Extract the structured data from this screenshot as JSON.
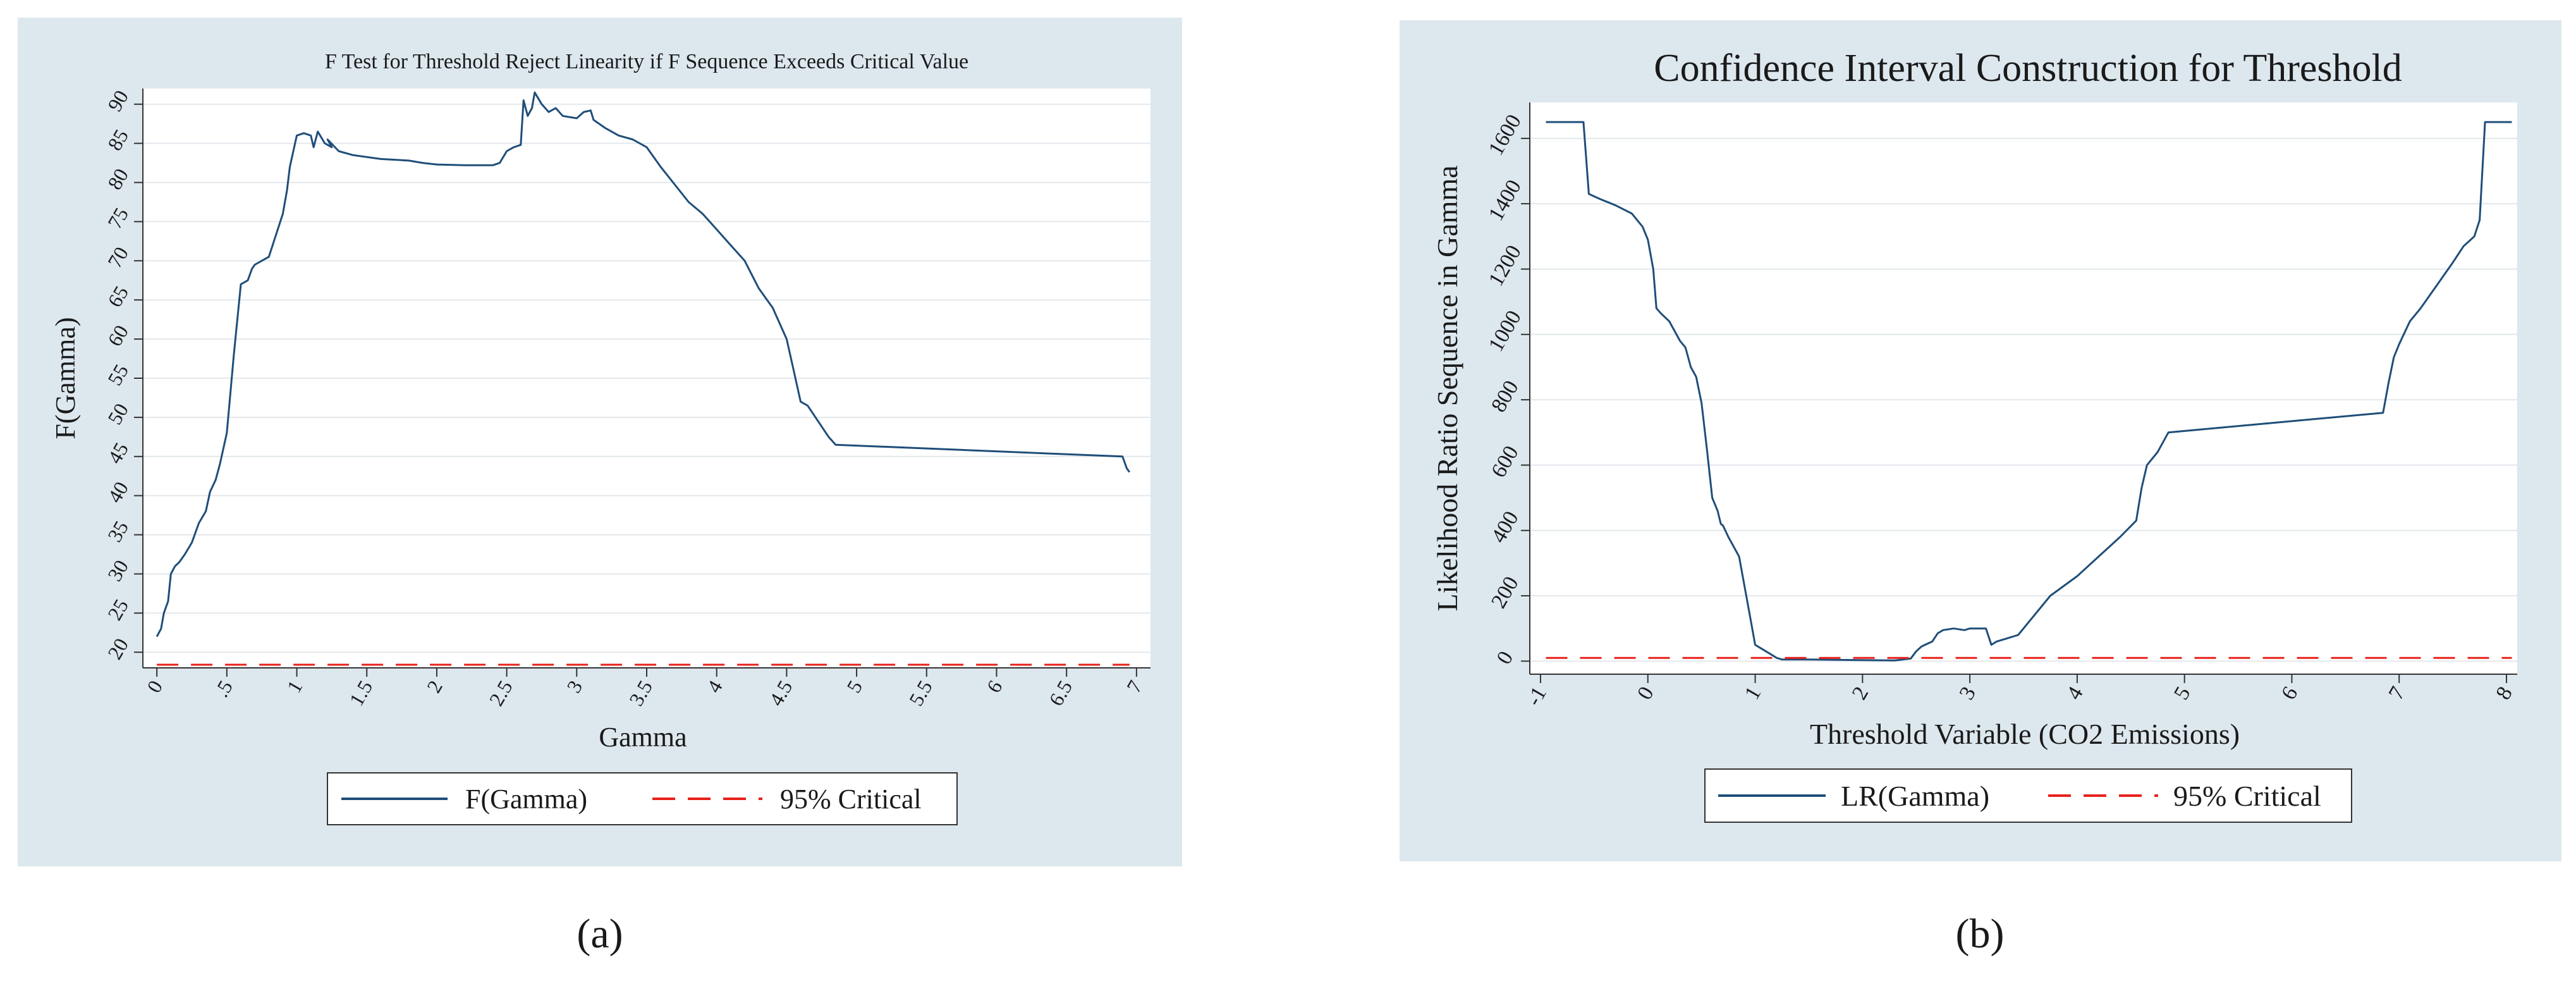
{
  "chart_data": [
    {
      "panel_label": "(a)",
      "type": "line",
      "title": "F Test for Threshold Reject Linearity if F Sequence Exceeds Critical Value",
      "xlabel": "Gamma",
      "ylabel": "F(Gamma)",
      "xlim": [
        -0.1,
        7.1
      ],
      "ylim": [
        18,
        92
      ],
      "xticks": [
        0,
        0.5,
        1,
        1.5,
        2,
        2.5,
        3,
        3.5,
        4,
        4.5,
        5,
        5.5,
        6,
        6.5,
        7
      ],
      "xtick_labels": [
        "0",
        ".5",
        "1",
        "1.5",
        "2",
        "2.5",
        "3",
        "3.5",
        "4",
        "4.5",
        "5",
        "5.5",
        "6",
        "6.5",
        "7"
      ],
      "yticks": [
        20,
        25,
        30,
        35,
        40,
        45,
        50,
        55,
        60,
        65,
        70,
        75,
        80,
        85,
        90
      ],
      "ytick_labels": [
        "20",
        "25",
        "30",
        "35",
        "40",
        "45",
        "50",
        "55",
        "60",
        "65",
        "70",
        "75",
        "80",
        "85",
        "90"
      ],
      "grid": true,
      "legend": [
        "F(Gamma)",
        "95% Critical"
      ],
      "colors": {
        "series": "#1f4e79",
        "critical": "#e8201a",
        "frame": "#dde7ee"
      },
      "series": [
        {
          "name": "F(Gamma)",
          "style": "solid",
          "x": [
            0,
            0.03,
            0.05,
            0.08,
            0.1,
            0.13,
            0.16,
            0.2,
            0.25,
            0.3,
            0.35,
            0.38,
            0.42,
            0.45,
            0.5,
            0.55,
            0.6,
            0.65,
            0.68,
            0.7,
            0.75,
            0.8,
            0.9,
            0.93,
            0.95,
            1.0,
            1.05,
            1.1,
            1.12,
            1.15,
            1.2,
            1.25,
            1.22,
            1.3,
            1.4,
            1.6,
            1.8,
            1.9,
            2.0,
            2.2,
            2.4,
            2.45,
            2.5,
            2.55,
            2.6,
            2.62,
            2.65,
            2.68,
            2.7,
            2.75,
            2.8,
            2.85,
            2.9,
            3.0,
            3.05,
            3.1,
            3.12,
            3.2,
            3.3,
            3.4,
            3.5,
            3.6,
            3.8,
            3.9,
            4.0,
            4.1,
            4.2,
            4.3,
            4.4,
            4.5,
            4.55,
            4.6,
            4.65,
            4.8,
            4.85,
            6.9,
            6.93,
            6.95
          ],
          "y": [
            22,
            23,
            25,
            26.5,
            30,
            31,
            31.5,
            32.5,
            34,
            36.5,
            38,
            40.5,
            42,
            44,
            48,
            58,
            67,
            67.5,
            69,
            69.5,
            70,
            70.5,
            76,
            79,
            82,
            86,
            86.3,
            86,
            84.5,
            86.5,
            85,
            84.5,
            85.5,
            84,
            83.5,
            83,
            82.8,
            82.5,
            82.3,
            82.2,
            82.2,
            82.5,
            84,
            84.5,
            84.8,
            90.5,
            88.5,
            89.5,
            91.5,
            90,
            89,
            89.5,
            88.5,
            88.2,
            89,
            89.2,
            88,
            87,
            86,
            85.5,
            84.5,
            82,
            77.5,
            76,
            74,
            72,
            70,
            66.5,
            64,
            60,
            56,
            52,
            51.5,
            47.5,
            46.5,
            45,
            43.5,
            43
          ]
        },
        {
          "name": "95% Critical",
          "style": "dashed",
          "x": [
            0,
            6.95
          ],
          "y": [
            18.4,
            18.4
          ]
        }
      ]
    },
    {
      "panel_label": "(b)",
      "type": "line",
      "title": "Confidence Interval Construction for Threshold",
      "xlabel": "Threshold Variable (CO2 Emissions)",
      "ylabel": "Likelihood Ratio Sequence in Gamma",
      "xlim": [
        -1.1,
        8.1
      ],
      "ylim": [
        -40,
        1710
      ],
      "xticks": [
        -1,
        0,
        1,
        2,
        3,
        4,
        5,
        6,
        7,
        8
      ],
      "xtick_labels": [
        "-1",
        "0",
        "1",
        "2",
        "3",
        "4",
        "5",
        "6",
        "7",
        "8"
      ],
      "yticks": [
        0,
        200,
        400,
        600,
        800,
        1000,
        1200,
        1400,
        1600
      ],
      "ytick_labels": [
        "0",
        "200",
        "400",
        "600",
        "800",
        "1000",
        "1200",
        "1400",
        "1600"
      ],
      "grid": true,
      "legend": [
        "LR(Gamma)",
        "95% Critical"
      ],
      "colors": {
        "series": "#1f4e79",
        "critical": "#e8201a",
        "frame": "#dde7ee"
      },
      "series": [
        {
          "name": "LR(Gamma)",
          "style": "solid",
          "x": [
            -0.95,
            -0.6,
            -0.55,
            -0.45,
            -0.3,
            -0.15,
            -0.05,
            0,
            0.05,
            0.08,
            0.12,
            0.2,
            0.3,
            0.35,
            0.4,
            0.45,
            0.5,
            0.55,
            0.6,
            0.65,
            0.68,
            0.7,
            0.75,
            0.85,
            0.9,
            0.95,
            1.0,
            1.05,
            1.1,
            1.2,
            1.25,
            1.5,
            2.0,
            2.3,
            2.45,
            2.5,
            2.55,
            2.65,
            2.7,
            2.75,
            2.85,
            2.95,
            3.0,
            3.05,
            3.15,
            3.2,
            3.25,
            3.45,
            3.55,
            3.75,
            4.0,
            4.2,
            4.3,
            4.4,
            4.55,
            4.6,
            4.65,
            4.75,
            4.85,
            6.85,
            6.9,
            6.95,
            7.0,
            7.1,
            7.2,
            7.35,
            7.5,
            7.6,
            7.7,
            7.75,
            7.8,
            8.05
          ],
          "y": [
            1650,
            1650,
            1430,
            1415,
            1395,
            1370,
            1330,
            1290,
            1200,
            1080,
            1065,
            1040,
            980,
            960,
            900,
            870,
            790,
            650,
            500,
            460,
            420,
            415,
            380,
            320,
            230,
            140,
            50,
            40,
            30,
            10,
            5,
            5,
            3,
            2,
            8,
            30,
            45,
            60,
            85,
            95,
            100,
            95,
            100,
            100,
            100,
            50,
            60,
            80,
            120,
            200,
            260,
            320,
            350,
            380,
            430,
            530,
            600,
            640,
            700,
            760,
            850,
            930,
            970,
            1040,
            1080,
            1150,
            1220,
            1270,
            1300,
            1350,
            1650,
            1650
          ]
        },
        {
          "name": "95% Critical",
          "style": "dashed",
          "x": [
            -0.95,
            8.05
          ],
          "y": [
            10,
            10
          ]
        }
      ]
    }
  ]
}
